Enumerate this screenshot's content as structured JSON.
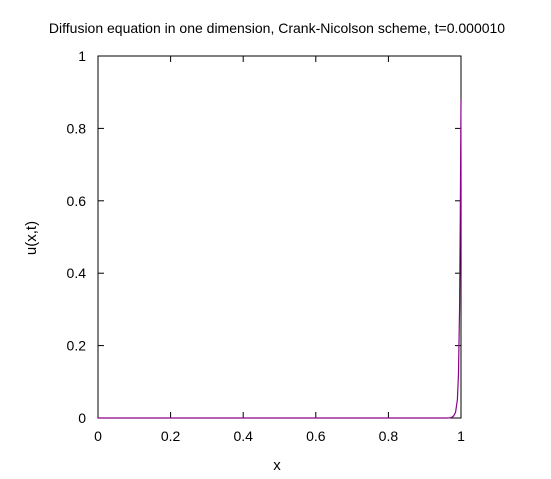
{
  "chart_data": {
    "type": "line",
    "title": "Diffusion equation in one dimension, Crank-Nicolson scheme, t=0.000010",
    "xlabel": "x",
    "ylabel": "u(x,t)",
    "xlim": [
      0,
      1
    ],
    "ylim": [
      0,
      1
    ],
    "x_ticks": [
      "0",
      "0.2",
      "0.4",
      "0.6",
      "0.8",
      "1"
    ],
    "y_ticks": [
      "0",
      "0.2",
      "0.4",
      "0.6",
      "0.8",
      "1"
    ],
    "grid": false,
    "legend": "none",
    "series": [
      {
        "color": "#8b008b",
        "x": [
          0,
          0.96,
          0.97,
          0.975,
          0.98,
          0.985,
          0.99,
          0.993,
          0.996,
          0.998,
          1.0
        ],
        "y": [
          0,
          0,
          0.0005,
          0.002,
          0.006,
          0.016,
          0.05,
          0.12,
          0.3,
          0.55,
          0.88
        ]
      }
    ]
  }
}
